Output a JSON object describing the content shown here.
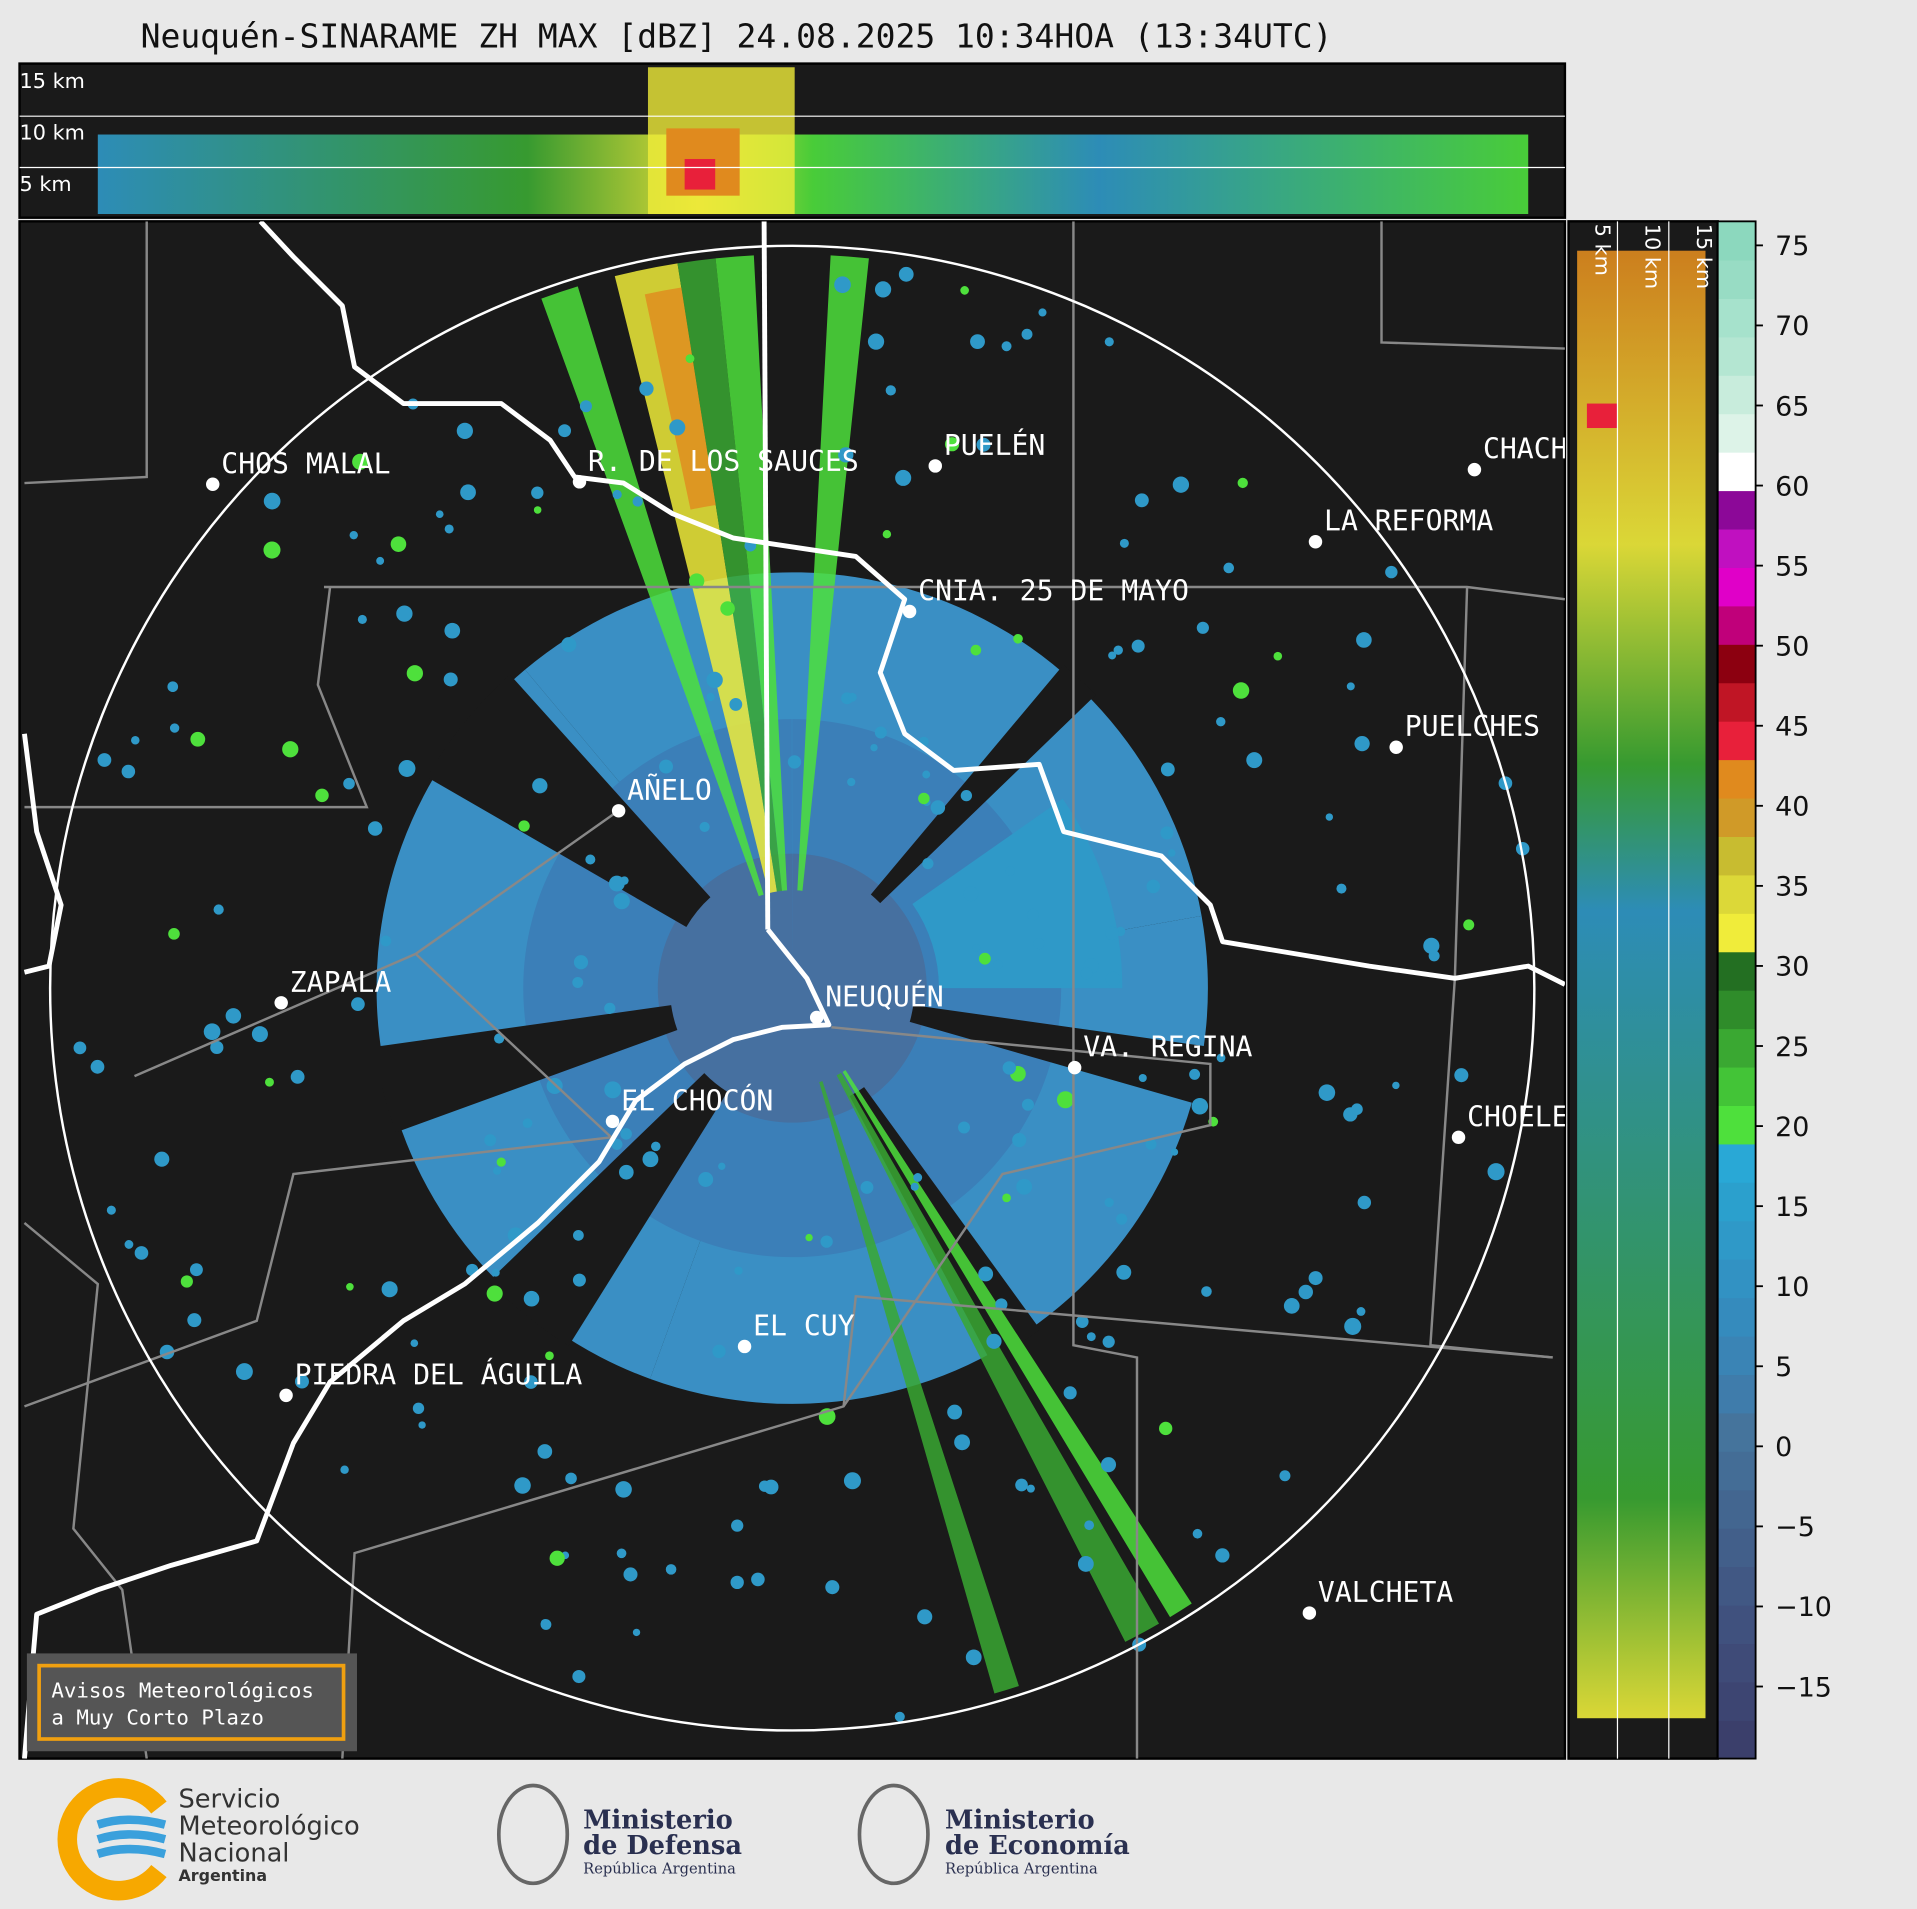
{
  "title": "Neuquén-SINARAME ZH MAX [dBZ] 24.08.2025 10:34HOA (13:34UTC)",
  "top_profile": {
    "height_labels": [
      "15 km",
      "10 km",
      "5 km"
    ]
  },
  "side_profile": {
    "height_labels": [
      "5 km",
      "10 km",
      "15 km"
    ]
  },
  "map": {
    "places": [
      "CHOS MALAL",
      "R. DE LOS SAUCES",
      "PUELÉN",
      "CHACH",
      "LA REFORMA",
      "CNIA. 25 DE MAYO",
      "PUELCHES",
      "AÑELO",
      "ZAPALA",
      "NEUQUÉN",
      "VA. REGINA",
      "EL CHOCÓN",
      "CHOELE",
      "EL CUY",
      "PIEDRA DEL ÁGUILA",
      "VALCHETA"
    ]
  },
  "colorbar": {
    "lim": [
      -19.5,
      76.5
    ],
    "ticks": [
      75,
      70,
      65,
      60,
      55,
      50,
      45,
      40,
      35,
      30,
      25,
      20,
      15,
      10,
      5,
      0,
      {
        "value": -5,
        "label": "−5"
      },
      {
        "value": -10,
        "label": "−10"
      },
      {
        "value": -15,
        "label": "−15"
      }
    ],
    "colors": [
      "#3b3f6b",
      "#3d4572",
      "#3f4b78",
      "#40517e",
      "#415884",
      "#425f8a",
      "#436690",
      "#446d96",
      "#45749c",
      "#3f7cab",
      "#3a84b5",
      "#358bbd",
      "#3292c3",
      "#2f99c8",
      "#2ba0cd",
      "#29a8d6",
      "#4ee03c",
      "#43c437",
      "#3aa832",
      "#2f8c2a",
      "#236f22",
      "#f0ec3a",
      "#dcd838",
      "#c8bc30",
      "#d09a28",
      "#e08a1e",
      "#e8203a",
      "#c01525",
      "#8c0010",
      "#c0007a",
      "#e000c8",
      "#c010c0",
      "#8c0898",
      "#ffffff",
      "#ddf3e8",
      "#c8ecdc",
      "#b4e6d2",
      "#a6e2cc",
      "#98dcc4",
      "#8cd8be"
    ]
  },
  "notice": [
    "Avisos Meteorológicos",
    "a Muy Corto Plazo"
  ],
  "logos": {
    "smn": [
      "Servicio",
      "Meteorológico",
      "Nacional",
      "Argentina"
    ],
    "defensa": [
      "Ministerio",
      "de Defensa",
      "República Argentina"
    ],
    "economia": [
      "Ministerio",
      "de Economía",
      "República Argentina"
    ]
  }
}
